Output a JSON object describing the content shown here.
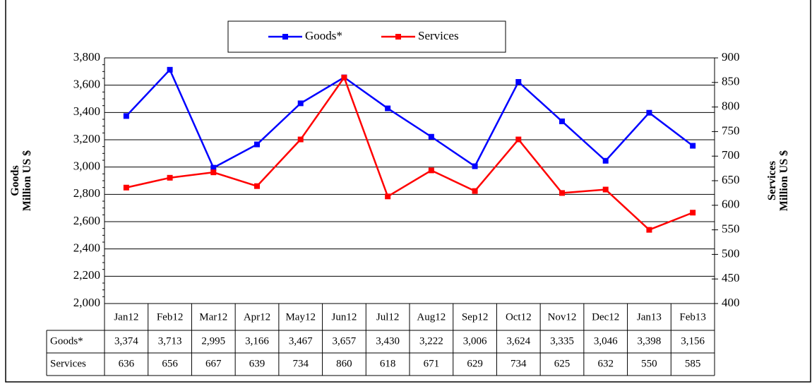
{
  "chart_data": {
    "type": "line",
    "categories": [
      "Jan12",
      "Feb12",
      "Mar12",
      "Apr12",
      "May12",
      "Jun12",
      "Jul12",
      "Aug12",
      "Sep12",
      "Oct12",
      "Nov12",
      "Dec12",
      "Jan13",
      "Feb13"
    ],
    "series": [
      {
        "name": "Goods*",
        "color": "#0000ff",
        "values": [
          3374,
          3713,
          2995,
          3166,
          3467,
          3657,
          3430,
          3222,
          3006,
          3624,
          3335,
          3046,
          3398,
          3156
        ],
        "value_labels": [
          "3,374",
          "3,713",
          "2,995",
          "3,166",
          "3,467",
          "3,657",
          "3,430",
          "3,222",
          "3,006",
          "3,624",
          "3,335",
          "3,046",
          "3,398",
          "3,156"
        ]
      },
      {
        "name": "Services",
        "color": "#ff0000",
        "axis": "y2",
        "values": [
          636,
          656,
          667,
          639,
          734,
          860,
          618,
          671,
          629,
          734,
          625,
          632,
          550,
          585
        ]
      }
    ],
    "ylabel": [
      "Goods",
      "Million  US $"
    ],
    "y2label": [
      "Services",
      "Million US $"
    ],
    "ylim": [
      2000,
      3800
    ],
    "yticks": [
      {
        "value": 2000,
        "label": "2,000"
      },
      {
        "value": 2200,
        "label": "2,200"
      },
      {
        "value": 2400,
        "label": "2,400"
      },
      {
        "value": 2600,
        "label": "2,600"
      },
      {
        "value": 2800,
        "label": "2,800"
      },
      {
        "value": 3000,
        "label": "3,000"
      },
      {
        "value": 3200,
        "label": "3,200"
      },
      {
        "value": 3400,
        "label": "3,400"
      },
      {
        "value": 3600,
        "label": "3,600"
      },
      {
        "value": 3800,
        "label": "3,800"
      }
    ],
    "y2lim": [
      400,
      900
    ],
    "y2ticks": [
      400,
      450,
      500,
      550,
      600,
      650,
      700,
      750,
      800,
      850,
      900
    ],
    "grid": true,
    "legend": "top"
  }
}
